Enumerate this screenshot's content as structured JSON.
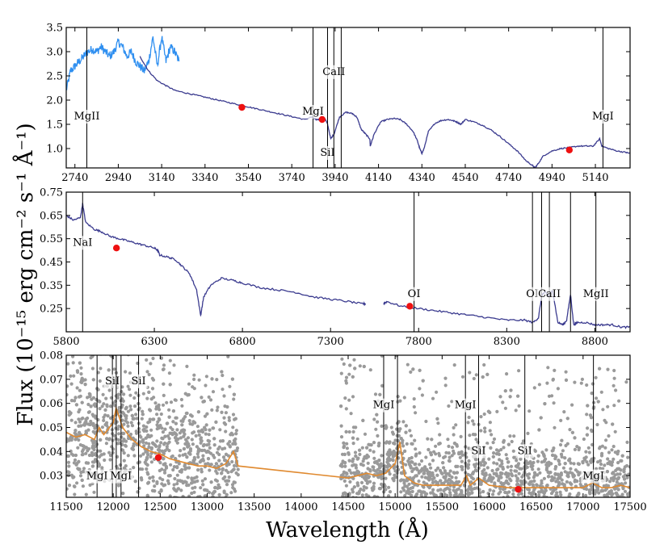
{
  "figure": {
    "xlabel": "Wavelength (Å)",
    "ylabel": "Flux (10⁻¹⁵ erg cm⁻² s⁻¹ Å⁻¹)"
  },
  "chart_data": [
    {
      "type": "line",
      "panel": "top",
      "xlim": [
        2700,
        5300
      ],
      "ylim": [
        0.6,
        3.5
      ],
      "xticks": [
        2740,
        2940,
        3140,
        3340,
        3540,
        3740,
        3940,
        4140,
        4340,
        4540,
        4740,
        4940,
        5140
      ],
      "yticks": [
        1.0,
        1.5,
        2.0,
        2.5,
        3.0,
        3.5
      ],
      "series": [
        {
          "name": "blue-segment",
          "color": "#2f8ff0",
          "x": [
            2700,
            2720,
            2740,
            2760,
            2780,
            2800,
            2820,
            2840,
            2860,
            2880,
            2900,
            2920,
            2940,
            2960,
            2980,
            3000,
            3020,
            3040,
            3060,
            3080,
            3100,
            3120,
            3140,
            3160,
            3180,
            3200,
            3220
          ],
          "y": [
            2.2,
            2.6,
            2.7,
            2.8,
            2.9,
            3.0,
            3.05,
            3.0,
            3.1,
            3.0,
            2.9,
            3.0,
            3.2,
            3.1,
            2.9,
            3.0,
            2.8,
            2.7,
            2.6,
            2.8,
            3.3,
            2.7,
            3.3,
            2.8,
            3.1,
            3.0,
            2.8
          ]
        },
        {
          "name": "spectrum",
          "color": "#3b3b8f",
          "x": [
            3040,
            3080,
            3120,
            3160,
            3200,
            3250,
            3300,
            3350,
            3400,
            3450,
            3500,
            3550,
            3600,
            3650,
            3700,
            3750,
            3800,
            3830,
            3850,
            3870,
            3890,
            3905,
            3920,
            3935,
            3960,
            3990,
            4020,
            4040,
            4060,
            4080,
            4100,
            4102,
            4120,
            4150,
            4180,
            4210,
            4240,
            4270,
            4300,
            4320,
            4330,
            4340,
            4350,
            4370,
            4400,
            4430,
            4460,
            4480,
            4500,
            4520,
            4540,
            4580,
            4620,
            4660,
            4700,
            4740,
            4780,
            4820,
            4850,
            4861,
            4875,
            4900,
            4940,
            4980,
            5020,
            5060,
            5100,
            5130,
            5160,
            5170,
            5200,
            5240,
            5280,
            5300
          ],
          "y": [
            2.9,
            2.6,
            2.4,
            2.3,
            2.2,
            2.15,
            2.1,
            2.05,
            2.0,
            1.95,
            1.9,
            1.85,
            1.8,
            1.75,
            1.7,
            1.65,
            1.6,
            1.65,
            1.6,
            1.6,
            1.65,
            1.5,
            1.2,
            1.3,
            1.65,
            1.75,
            1.72,
            1.65,
            1.4,
            1.3,
            1.2,
            1.05,
            1.3,
            1.55,
            1.6,
            1.62,
            1.6,
            1.5,
            1.35,
            1.15,
            1.0,
            0.9,
            1.0,
            1.35,
            1.52,
            1.58,
            1.6,
            1.58,
            1.55,
            1.5,
            1.6,
            1.55,
            1.48,
            1.38,
            1.25,
            1.1,
            0.95,
            0.75,
            0.65,
            0.6,
            0.68,
            0.85,
            0.95,
            1.0,
            1.02,
            1.05,
            1.05,
            1.05,
            1.2,
            1.05,
            1.0,
            0.95,
            0.92,
            0.9
          ]
        }
      ],
      "photometry": [
        {
          "x": 3510,
          "y": 1.85
        },
        {
          "x": 3880,
          "y": 1.6
        },
        {
          "x": 5020,
          "y": 0.97
        }
      ],
      "lines": [
        {
          "x": 2795,
          "label": "MgII",
          "label_y": 1.6
        },
        {
          "x": 3838,
          "label": "MgI",
          "label_y": 1.7
        },
        {
          "x": 3905,
          "label": "SiI",
          "label_y": 0.85
        },
        {
          "x": 3934,
          "label": "CaII",
          "label_y": 2.52
        },
        {
          "x": 3968,
          "label": "",
          "label_y": 0
        },
        {
          "x": 5175,
          "label": "MgI",
          "label_y": 1.6
        }
      ]
    },
    {
      "type": "line",
      "panel": "middle",
      "xlim": [
        5800,
        9000
      ],
      "ylim": [
        0.15,
        0.75
      ],
      "xticks": [
        5800,
        6300,
        6800,
        7300,
        7800,
        8300,
        8800
      ],
      "yticks": [
        0.25,
        0.35,
        0.45,
        0.55,
        0.65,
        0.75
      ],
      "series": [
        {
          "name": "spectrum",
          "color": "#3b3b8f",
          "x": [
            5800,
            5840,
            5880,
            5893,
            5910,
            5960,
            6000,
            6050,
            6100,
            6150,
            6200,
            6250,
            6300,
            6320,
            6330,
            6380,
            6420,
            6460,
            6500,
            6540,
            6563,
            6580,
            6620,
            6680,
            6750,
            6800,
            6900,
            7000,
            7100,
            7200,
            7300,
            7400,
            7480,
            7500
          ],
          "y": [
            0.65,
            0.63,
            0.64,
            0.7,
            0.62,
            0.59,
            0.58,
            0.56,
            0.55,
            0.54,
            0.53,
            0.52,
            0.51,
            0.5,
            0.48,
            0.47,
            0.46,
            0.43,
            0.4,
            0.33,
            0.22,
            0.3,
            0.35,
            0.38,
            0.37,
            0.36,
            0.34,
            0.33,
            0.32,
            0.3,
            0.29,
            0.28,
            0.27,
            0.27
          ]
        },
        {
          "name": "spectrum-red",
          "color": "#3b3b8f",
          "x": [
            7600,
            7620,
            7700,
            7800,
            7900,
            8000,
            8100,
            8200,
            8300,
            8400,
            8450,
            8480,
            8500,
            8520,
            8542,
            8560,
            8590,
            8620,
            8640,
            8662,
            8680,
            8700,
            8750,
            8800,
            8850,
            8900,
            8950,
            9000
          ],
          "y": [
            0.27,
            0.28,
            0.26,
            0.25,
            0.24,
            0.23,
            0.22,
            0.21,
            0.2,
            0.2,
            0.19,
            0.21,
            0.31,
            0.32,
            0.3,
            0.33,
            0.19,
            0.18,
            0.2,
            0.31,
            0.18,
            0.19,
            0.19,
            0.18,
            0.18,
            0.18,
            0.17,
            0.17
          ]
        }
      ],
      "photometry": [
        {
          "x": 6085,
          "y": 0.51
        },
        {
          "x": 7750,
          "y": 0.26
        }
      ],
      "lines": [
        {
          "x": 5893,
          "label": "NaI",
          "label_y": 0.52
        },
        {
          "x": 7774,
          "label": "OI",
          "label_y": 0.3
        },
        {
          "x": 8446,
          "label": "OI",
          "label_y": 0.3
        },
        {
          "x": 8498,
          "label": "",
          "label_y": 0
        },
        {
          "x": 8542,
          "label": "CaII",
          "label_y": 0.3
        },
        {
          "x": 8662,
          "label": "",
          "label_y": 0
        },
        {
          "x": 8806,
          "label": "MgII",
          "label_y": 0.3
        }
      ]
    },
    {
      "type": "scatter",
      "panel": "bottom",
      "xlim": [
        11500,
        17500
      ],
      "ylim": [
        0.021,
        0.08
      ],
      "xticks": [
        11500,
        12000,
        12500,
        13000,
        13500,
        14000,
        14500,
        15000,
        15500,
        16000,
        16500,
        17000,
        17500
      ],
      "yticks": [
        0.03,
        0.04,
        0.05,
        0.06,
        0.07,
        0.08
      ],
      "scatter_color": "#9a9a9a",
      "smooth_color": "#e08a30",
      "smooth": {
        "x": [
          11500,
          11600,
          11700,
          11800,
          11850,
          11900,
          12000,
          12030,
          12100,
          12200,
          12300,
          12400,
          12500,
          12600,
          12700,
          12800,
          12900,
          13000,
          13100,
          13200,
          13280,
          13330,
          14500,
          14600,
          14700,
          14800,
          14900,
          15000,
          15050,
          15100,
          15200,
          15300,
          15400,
          15500,
          15600,
          15700,
          15760,
          15800,
          15890,
          16000,
          16200,
          16400,
          16600,
          16800,
          17000,
          17100,
          17200,
          17300,
          17400,
          17500
        ],
        "y": [
          0.048,
          0.046,
          0.047,
          0.045,
          0.05,
          0.047,
          0.052,
          0.058,
          0.05,
          0.045,
          0.042,
          0.04,
          0.039,
          0.037,
          0.036,
          0.035,
          0.034,
          0.034,
          0.033,
          0.035,
          0.04,
          0.034,
          0.029,
          0.03,
          0.031,
          0.03,
          0.031,
          0.035,
          0.044,
          0.03,
          0.027,
          0.026,
          0.026,
          0.026,
          0.026,
          0.026,
          0.03,
          0.026,
          0.029,
          0.026,
          0.025,
          0.025,
          0.025,
          0.025,
          0.025,
          0.027,
          0.025,
          0.025,
          0.026,
          0.025
        ]
      },
      "photometry": [
        {
          "x": 12480,
          "y": 0.0375
        },
        {
          "x": 16310,
          "y": 0.0243
        }
      ],
      "lines": [
        {
          "x": 11828,
          "label": "MgI",
          "label_y": 0.0285
        },
        {
          "x": 11991,
          "label": "SiI",
          "label_y": 0.068
        },
        {
          "x": 12032,
          "label": "",
          "label_y": 0
        },
        {
          "x": 12083,
          "label": "MgI",
          "label_y": 0.0285
        },
        {
          "x": 12270,
          "label": "SiI",
          "label_y": 0.068
        },
        {
          "x": 14878,
          "label": "MgI",
          "label_y": 0.058
        },
        {
          "x": 15025,
          "label": "",
          "label_y": 0
        },
        {
          "x": 15748,
          "label": "MgI",
          "label_y": 0.058
        },
        {
          "x": 15888,
          "label": "SiI",
          "label_y": 0.039
        },
        {
          "x": 16380,
          "label": "SiI",
          "label_y": 0.039
        },
        {
          "x": 17110,
          "label": "MgI",
          "label_y": 0.0285
        }
      ]
    }
  ]
}
